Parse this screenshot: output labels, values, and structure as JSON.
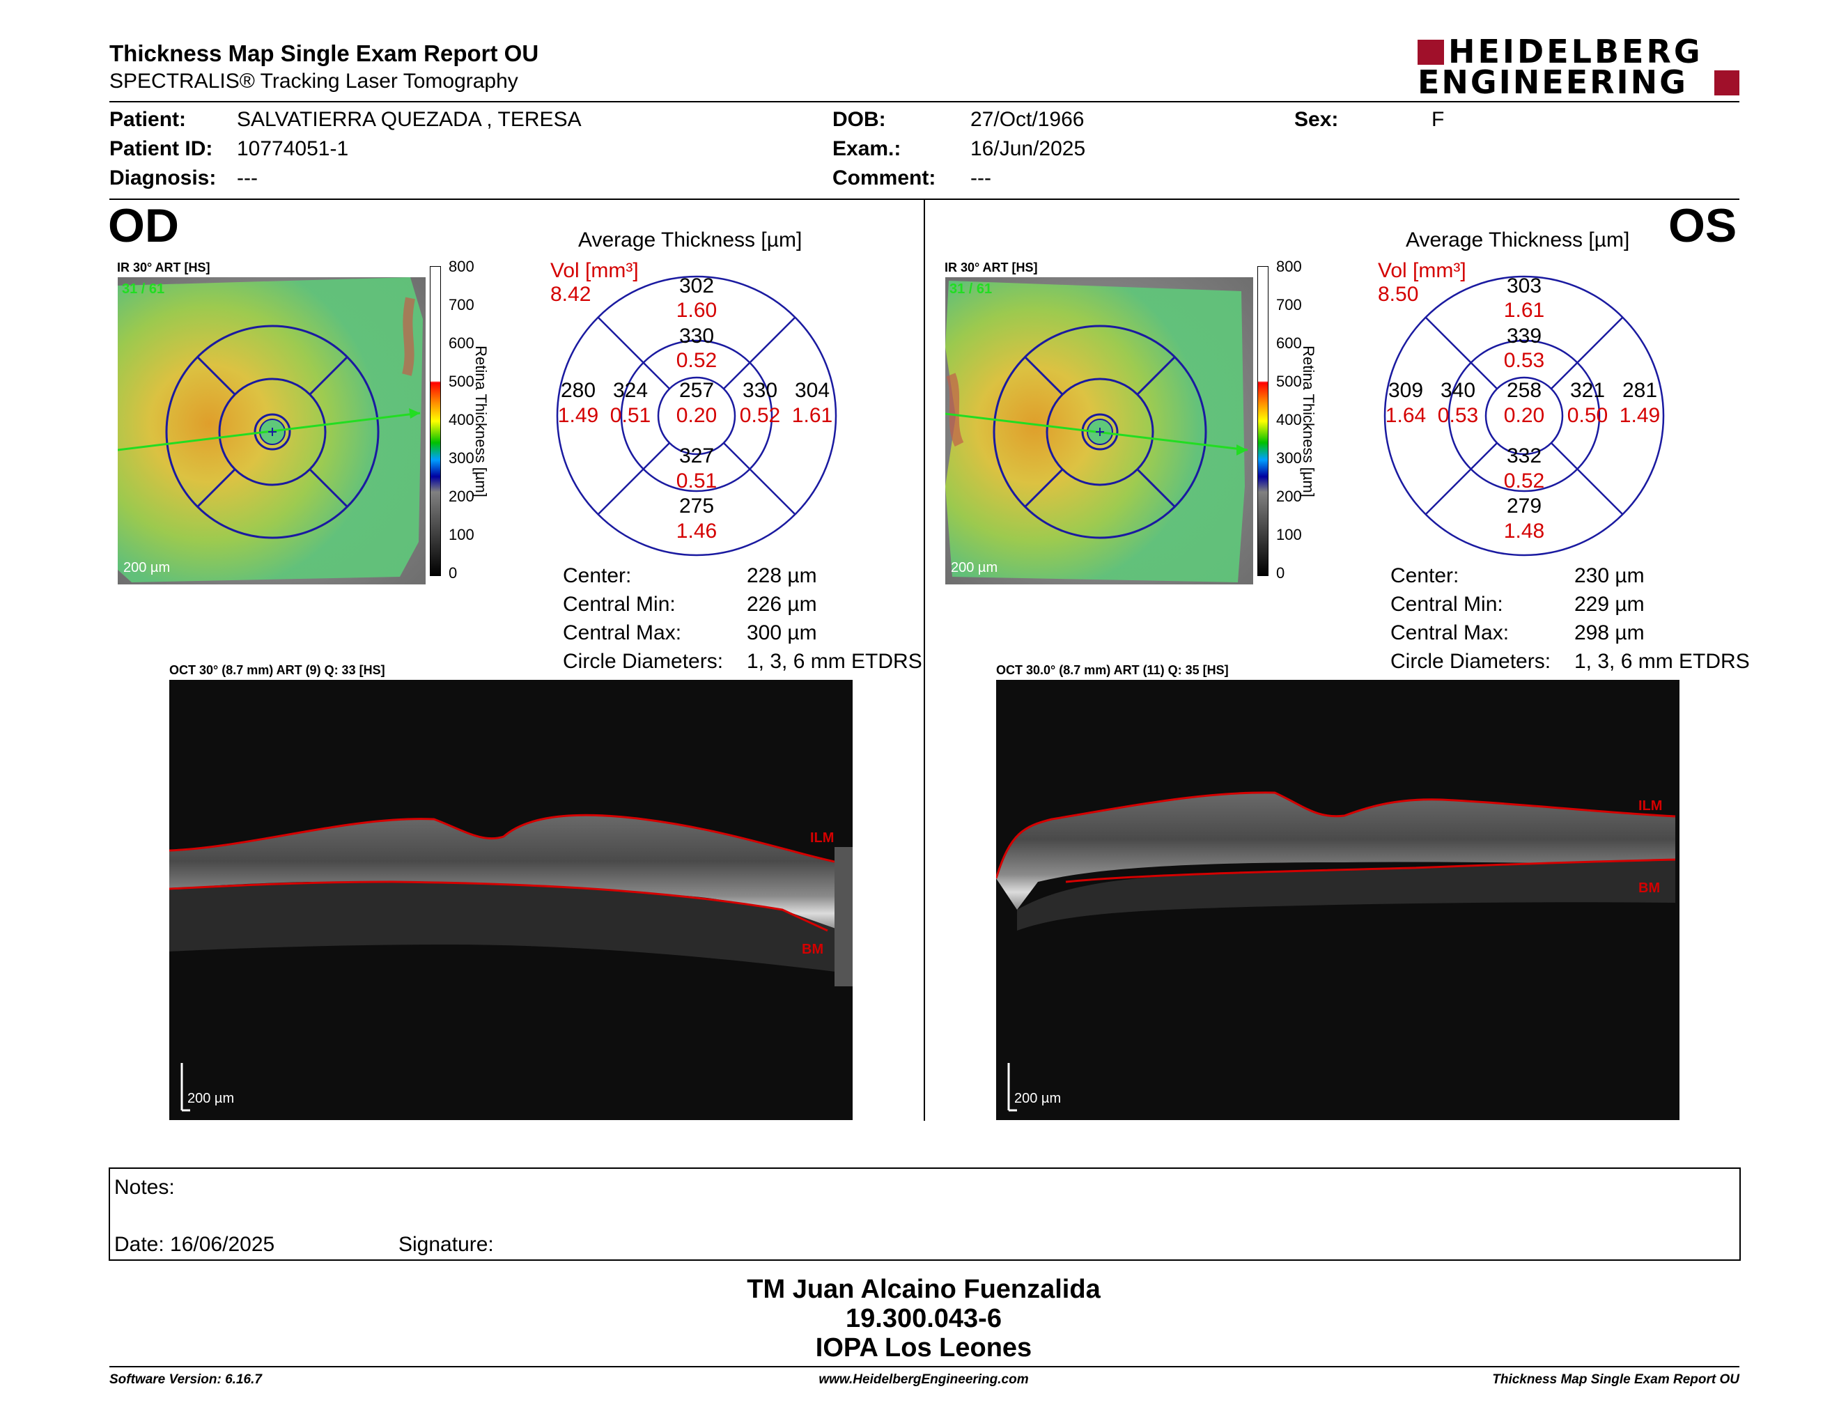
{
  "header": {
    "title": "Thickness Map Single Exam Report OU",
    "subtitle": "SPECTRALIS® Tracking Laser Tomography",
    "logo_line1": "HEIDELBERG",
    "logo_line2": "ENGINEERING"
  },
  "patient": {
    "patient_label": "Patient:",
    "patient_value": "SALVATIERRA QUEZADA , TERESA",
    "id_label": "Patient ID:",
    "id_value": "10774051-1",
    "diagnosis_label": "Diagnosis:",
    "diagnosis_value": "---",
    "dob_label": "DOB:",
    "dob_value": "27/Oct/1966",
    "exam_label": "Exam.:",
    "exam_value": "16/Jun/2025",
    "comment_label": "Comment:",
    "comment_value": "---",
    "sex_label": "Sex:",
    "sex_value": "F"
  },
  "scale": {
    "ticks": [
      "800",
      "700",
      "600",
      "500",
      "400",
      "300",
      "200",
      "100",
      "0"
    ],
    "title": "Retina Thickness [µm]"
  },
  "od": {
    "eye": "OD",
    "ir_label": "IR 30° ART [HS]",
    "frames": "31 / 61",
    "scale_bar": "200 µm",
    "avg_title": "Average Thickness [µm]",
    "vol_label": "Vol [mm³]",
    "vol_value": "8.42",
    "sectors": {
      "c_t": "257",
      "c_v": "0.20",
      "is_t": "330",
      "is_v": "0.52",
      "ii_t": "327",
      "ii_v": "0.51",
      "il_t": "324",
      "il_v": "0.51",
      "ir_t": "330",
      "ir_v": "0.52",
      "os_t": "302",
      "os_v": "1.60",
      "oi_t": "275",
      "oi_v": "1.46",
      "ol_t": "280",
      "ol_v": "1.49",
      "or_t": "304",
      "or_v": "1.61"
    },
    "stats": {
      "center_label": "Center:",
      "center_value": "228 µm",
      "min_label": "Central Min:",
      "min_value": "226 µm",
      "max_label": "Central Max:",
      "max_value": "300 µm",
      "diam_label": "Circle Diameters:",
      "diam_value": "1, 3, 6 mm ETDRS"
    },
    "oct_label": "OCT 30° (8.7 mm) ART (9) Q: 33 [HS]",
    "ilm": "ILM",
    "bm": "BM",
    "oct_scale": "200 µm"
  },
  "os": {
    "eye": "OS",
    "ir_label": "IR 30° ART [HS]",
    "frames": "31 / 61",
    "scale_bar": "200 µm",
    "avg_title": "Average Thickness [µm]",
    "vol_label": "Vol [mm³]",
    "vol_value": "8.50",
    "sectors": {
      "c_t": "258",
      "c_v": "0.20",
      "is_t": "339",
      "is_v": "0.53",
      "ii_t": "332",
      "ii_v": "0.52",
      "il_t": "340",
      "il_v": "0.53",
      "ir_t": "321",
      "ir_v": "0.50",
      "os_t": "303",
      "os_v": "1.61",
      "oi_t": "279",
      "oi_v": "1.48",
      "ol_t": "309",
      "ol_v": "1.64",
      "or_t": "281",
      "or_v": "1.49"
    },
    "stats": {
      "center_label": "Center:",
      "center_value": "230 µm",
      "min_label": "Central Min:",
      "min_value": "229 µm",
      "max_label": "Central Max:",
      "max_value": "298 µm",
      "diam_label": "Circle Diameters:",
      "diam_value": "1, 3, 6 mm ETDRS"
    },
    "oct_label": "OCT 30.0° (8.7 mm) ART (11) Q: 35 [HS]",
    "ilm": "ILM",
    "bm": "BM",
    "oct_scale": "200 µm"
  },
  "notes": {
    "notes_label": "Notes:",
    "date_label": "Date: 16/06/2025",
    "signature_label": "Signature:"
  },
  "footer": {
    "name": "TM Juan Alcaino Fuenzalida",
    "rut": "19.300.043-6",
    "org": "IOPA Los Leones",
    "software": "Software Version: 6.16.7",
    "website": "www.HeidelbergEngineering.com",
    "report": "Thickness Map Single Exam Report OU"
  },
  "colors": {
    "accent_red": "#d40000",
    "grid_blue": "#1a1aa0",
    "logo_red": "#a0102a"
  }
}
